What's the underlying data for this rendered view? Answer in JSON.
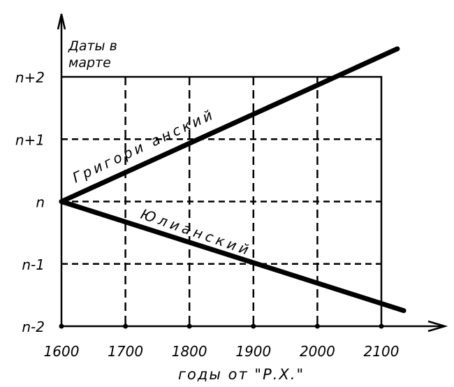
{
  "chart_data": {
    "type": "line",
    "ylabel": "Даты в марте",
    "xlabel": "годы от \"Р.Х.\"",
    "x_ticks": [
      1600,
      1700,
      1800,
      1900,
      2000,
      2100
    ],
    "x_tick_labels": [
      "1600",
      "1700",
      "1800",
      "1900",
      "2000",
      "2100"
    ],
    "y_ticks": [
      -2,
      -1,
      0,
      1,
      2
    ],
    "y_tick_labels": [
      "n-2",
      "n-1",
      "n",
      "n+1",
      "n+2"
    ],
    "xlim": [
      1600,
      2100
    ],
    "ylim": [
      -2,
      2
    ],
    "grid": true,
    "series": [
      {
        "name": "Григори анский",
        "x": [
          1600,
          2125
        ],
        "y": [
          0,
          2.45
        ]
      },
      {
        "name": "Юлианский",
        "x": [
          1600,
          2135
        ],
        "y": [
          0,
          -1.75
        ]
      }
    ],
    "colors": {
      "ink": "#000000",
      "background": "#ffffff"
    }
  }
}
